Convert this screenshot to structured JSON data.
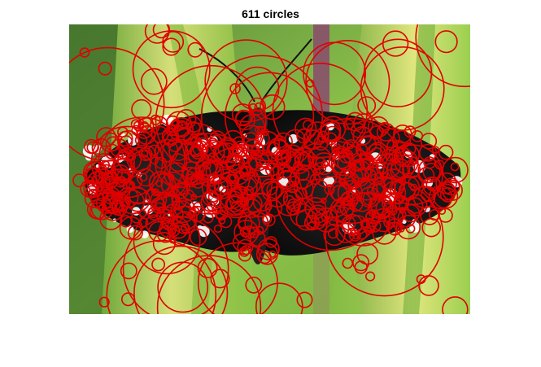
{
  "figure": {
    "title": "611 circles"
  },
  "image": {
    "subject": "butterfly-on-leaf",
    "colors": {
      "leaf_green": "#7fb83a",
      "leaf_yellow": "#d9e27a",
      "stem_purple": "#8a4a6e",
      "wing_black": "#121212",
      "spot_white": "#ffffff",
      "circle_red": "#e00000"
    }
  },
  "overlay": {
    "circle_count": 611
  }
}
